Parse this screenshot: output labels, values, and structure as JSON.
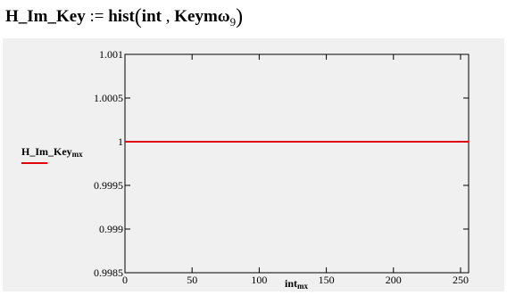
{
  "formula": {
    "lhs": "H_Im_Key",
    "operator": ":=",
    "function": "hist",
    "arg1": "int",
    "arg2": "Keym",
    "arg2_symbol": "ω",
    "arg2_sub": "9"
  },
  "chart_data": {
    "type": "line",
    "xlabel": "int",
    "xlabel_sub": "mx",
    "ylabel": "H_Im_Key",
    "ylabel_sub": "mx",
    "xlim": [
      0,
      256
    ],
    "ylim": [
      0.9985,
      1.001
    ],
    "x_ticks": [
      0,
      50,
      100,
      150,
      200,
      250
    ],
    "x_tick_labels": [
      "0",
      "50",
      "100",
      "150",
      "200",
      "250"
    ],
    "y_ticks": [
      0.9985,
      0.999,
      0.9995,
      1,
      1.0005,
      1.001
    ],
    "y_tick_labels": [
      "0.9985",
      "0.999",
      "0.9995",
      "1",
      "1.0005",
      "1.001"
    ],
    "series": [
      {
        "x": [
          0,
          256
        ],
        "y": [
          1,
          1
        ],
        "color": "#e00000"
      }
    ],
    "grid": false,
    "legend": "left"
  }
}
